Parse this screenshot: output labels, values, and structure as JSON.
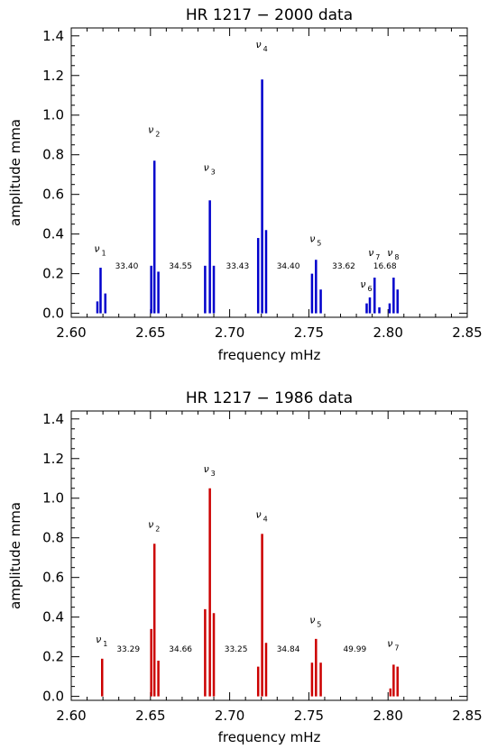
{
  "chart_data": [
    {
      "type": "bar",
      "title": "HR 1217 − 2000 data",
      "xlabel": "frequency mHz",
      "ylabel": "amplitude mma",
      "xlim": [
        2.6,
        2.85
      ],
      "ylim": [
        -0.02,
        1.44
      ],
      "xticks": [
        "2.60",
        "2.65",
        "2.70",
        "2.75",
        "2.80",
        "2.85"
      ],
      "yticks": [
        "0.0",
        "0.2",
        "0.4",
        "0.6",
        "0.8",
        "1.0",
        "1.2",
        "1.4"
      ],
      "color": "#0000cc",
      "x": [
        2.6165,
        2.6185,
        2.6215,
        2.6505,
        2.6525,
        2.655,
        2.6845,
        2.6875,
        2.69,
        2.718,
        2.7205,
        2.723,
        2.752,
        2.7545,
        2.7575,
        2.7865,
        2.7885,
        2.7915,
        2.7945,
        2.801,
        2.8035,
        2.806
      ],
      "values": [
        0.06,
        0.23,
        0.1,
        0.24,
        0.77,
        0.21,
        0.24,
        0.57,
        0.24,
        0.38,
        1.18,
        0.42,
        0.2,
        0.27,
        0.12,
        0.05,
        0.08,
        0.18,
        0.03,
        0.05,
        0.18,
        0.12
      ],
      "annotations": [
        {
          "text": "33.40",
          "x": 2.635,
          "y": 0.24
        },
        {
          "text": "34.55",
          "x": 2.669,
          "y": 0.24
        },
        {
          "text": "33.43",
          "x": 2.705,
          "y": 0.24
        },
        {
          "text": "34.40",
          "x": 2.737,
          "y": 0.24
        },
        {
          "text": "33.62",
          "x": 2.772,
          "y": 0.24
        },
        {
          "text": "16.68",
          "x": 2.798,
          "y": 0.24
        }
      ],
      "peaks": [
        {
          "label": "ν",
          "sub": "1",
          "x": 2.6185,
          "y": 0.31
        },
        {
          "label": "ν",
          "sub": "2",
          "x": 2.6525,
          "y": 0.91
        },
        {
          "label": "ν",
          "sub": "3",
          "x": 2.6875,
          "y": 0.72
        },
        {
          "label": "ν",
          "sub": "4",
          "x": 2.7205,
          "y": 1.34
        },
        {
          "label": "ν",
          "sub": "5",
          "x": 2.7545,
          "y": 0.36
        },
        {
          "label": "ν",
          "sub": "6",
          "x": 2.7865,
          "y": 0.13
        },
        {
          "label": "ν",
          "sub": "7",
          "x": 2.7915,
          "y": 0.29
        },
        {
          "label": "ν",
          "sub": "8",
          "x": 2.8035,
          "y": 0.29
        }
      ]
    },
    {
      "type": "bar",
      "title": "HR 1217 − 1986 data",
      "xlabel": "frequency mHz",
      "ylabel": "amplitude mma",
      "xlim": [
        2.6,
        2.85
      ],
      "ylim": [
        -0.02,
        1.44
      ],
      "xticks": [
        "2.60",
        "2.65",
        "2.70",
        "2.75",
        "2.80",
        "2.85"
      ],
      "yticks": [
        "0.0",
        "0.2",
        "0.4",
        "0.6",
        "0.8",
        "1.0",
        "1.2",
        "1.4"
      ],
      "color": "#cc0000",
      "x": [
        2.6195,
        2.6505,
        2.6525,
        2.655,
        2.6845,
        2.6875,
        2.69,
        2.718,
        2.7205,
        2.723,
        2.752,
        2.7545,
        2.7575,
        2.8015,
        2.8035,
        2.806
      ],
      "values": [
        0.19,
        0.34,
        0.77,
        0.18,
        0.44,
        1.05,
        0.42,
        0.15,
        0.82,
        0.27,
        0.17,
        0.29,
        0.17,
        0.04,
        0.16,
        0.15
      ],
      "annotations": [
        {
          "text": "33.29",
          "x": 2.636,
          "y": 0.24
        },
        {
          "text": "34.66",
          "x": 2.669,
          "y": 0.24
        },
        {
          "text": "33.25",
          "x": 2.704,
          "y": 0.24
        },
        {
          "text": "34.84",
          "x": 2.737,
          "y": 0.24
        },
        {
          "text": "49.99",
          "x": 2.779,
          "y": 0.24
        }
      ],
      "peaks": [
        {
          "label": "ν",
          "sub": "1",
          "x": 2.6195,
          "y": 0.27
        },
        {
          "label": "ν",
          "sub": "2",
          "x": 2.6525,
          "y": 0.85
        },
        {
          "label": "ν",
          "sub": "3",
          "x": 2.6875,
          "y": 1.13
        },
        {
          "label": "ν",
          "sub": "4",
          "x": 2.7205,
          "y": 0.9
        },
        {
          "label": "ν",
          "sub": "5",
          "x": 2.7545,
          "y": 0.37
        },
        {
          "label": "ν",
          "sub": "7",
          "x": 2.8035,
          "y": 0.25
        }
      ]
    }
  ]
}
